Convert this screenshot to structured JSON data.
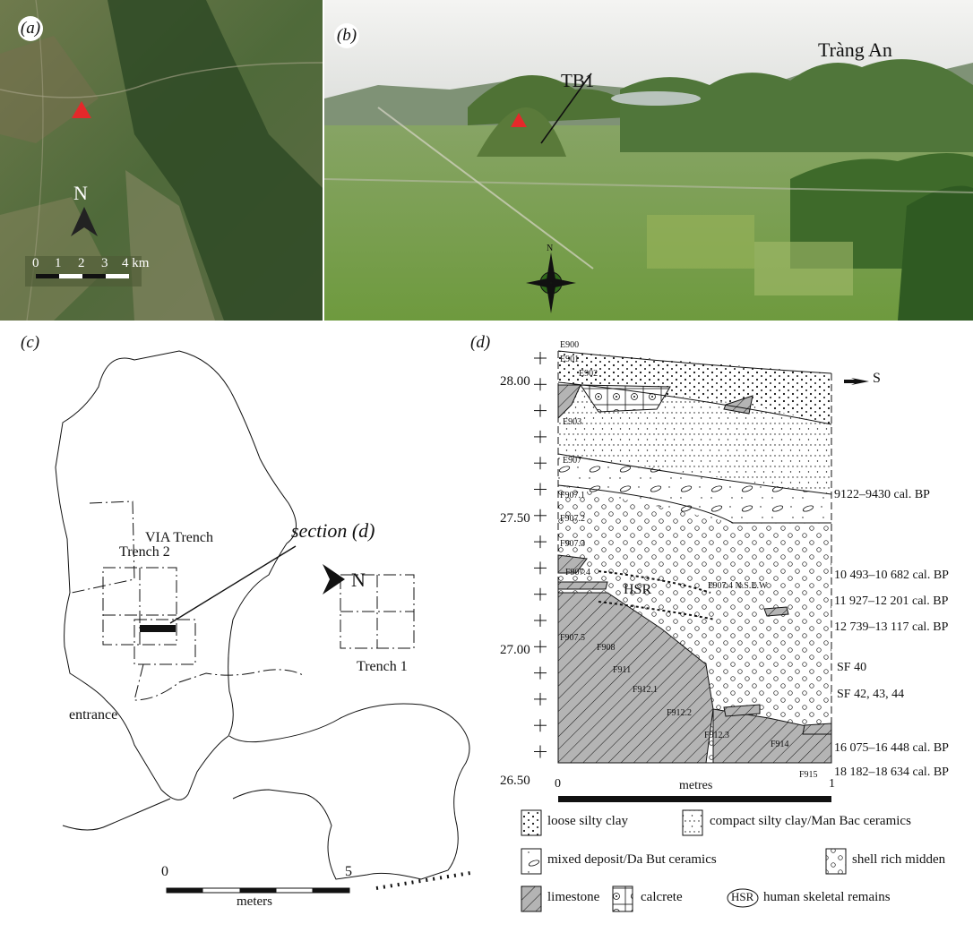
{
  "a": {
    "label": "(a)",
    "north": "N",
    "scale_labels": [
      "0",
      "1",
      "2",
      "3",
      "4 km"
    ]
  },
  "b": {
    "label": "(b)",
    "place": "Tràng An",
    "site": "TB1",
    "compass": "N"
  },
  "c": {
    "label": "(c)",
    "via": "VIA Trench",
    "trench2": "Trench 2",
    "trench1": "Trench 1",
    "section": "section (d)",
    "entrance": "entrance",
    "north": "N",
    "scale_labels": [
      "0",
      "5"
    ],
    "scale_unit": "meters"
  },
  "d": {
    "label": "(d)",
    "direction": "S",
    "elevations": [
      "28.00",
      "27.50",
      "27.00",
      "26.50"
    ],
    "contexts": [
      "E900",
      "E901",
      "E902",
      "E903",
      "E907",
      "F907.1",
      "F907.2",
      "F907.3",
      "F907.4",
      "F907.5",
      "F908",
      "F911",
      "F912.1",
      "F912.2",
      "F912.3",
      "F914",
      "F915",
      "F907.4 N.S.E.W"
    ],
    "hsr": "HSR",
    "dates": [
      "9122–9430 cal. BP",
      "10 493–10 682 cal. BP",
      "11 927–12 201 cal. BP",
      "12 739–13 117 cal. BP",
      "SF 40",
      "SF 42, 43, 44",
      "16 075–16 448 cal. BP",
      "18 182–18 634 cal. BP"
    ],
    "x_ticks": [
      "0",
      "1"
    ],
    "x_label": "metres",
    "legend": [
      "loose silty clay",
      "compact silty clay/Man Bac ceramics",
      "mixed deposit/Da But ceramics",
      "shell rich midden",
      "limestone",
      "calcrete",
      "human skeletal remains"
    ],
    "legend_hsr": "HSR"
  }
}
